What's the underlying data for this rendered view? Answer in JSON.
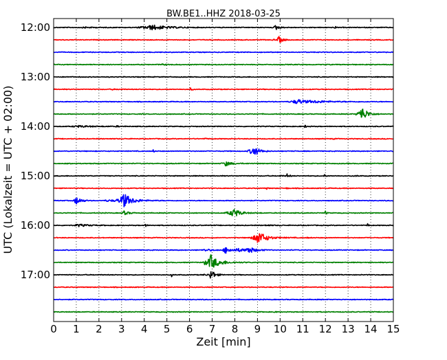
{
  "chart_data": {
    "type": "line",
    "title": "BW.BE1..HHZ 2018-03-25",
    "xlabel": "Zeit  [min]",
    "ylabel": "UTC (Lokalzeit = UTC + 02:00)",
    "xlim": [
      0,
      15
    ],
    "x_ticks": [
      "0",
      "1",
      "2",
      "3",
      "4",
      "5",
      "6",
      "7",
      "8",
      "9",
      "10",
      "11",
      "12",
      "13",
      "14",
      "15"
    ],
    "y_tick_labels": [
      "12:00",
      "13:00",
      "14:00",
      "15:00",
      "16:00",
      "17:00"
    ],
    "grid": "vertical dotted lines at each minute",
    "colors": [
      "#000000",
      "#ff0000",
      "#0000ff",
      "#008000"
    ],
    "traces": [
      {
        "start": "12:00",
        "events": [
          [
            4.1,
            1.6,
            0.8
          ],
          [
            4.4,
            2.0,
            0.5
          ],
          [
            9.8,
            3.2,
            0.15
          ],
          [
            12.4,
            2.2,
            0.05
          ],
          [
            1.4,
            0.7,
            0.3
          ]
        ]
      },
      {
        "start": "12:15",
        "events": [
          [
            9.95,
            4.5,
            0.15
          ],
          [
            9.7,
            0.8,
            0.1
          ]
        ]
      },
      {
        "start": "12:30",
        "events": []
      },
      {
        "start": "12:45",
        "events": [
          [
            4.8,
            0.5,
            0.3
          ]
        ]
      },
      {
        "start": "13:00",
        "events": []
      },
      {
        "start": "13:15",
        "events": [
          [
            6.05,
            2.5,
            0.05
          ],
          [
            2.6,
            0.6,
            0.1
          ],
          [
            2.9,
            0.5,
            0.1
          ]
        ]
      },
      {
        "start": "13:30",
        "events": [
          [
            10.8,
            2.2,
            0.35
          ],
          [
            10.6,
            1.2,
            0.5
          ],
          [
            11.6,
            1.0,
            0.8
          ]
        ]
      },
      {
        "start": "13:45",
        "events": [
          [
            13.6,
            7.5,
            0.2
          ],
          [
            13.5,
            3.0,
            0.35
          ],
          [
            0.15,
            0.5,
            0.05
          ],
          [
            3.9,
            0.5,
            0.05
          ]
        ]
      },
      {
        "start": "14:00",
        "events": [
          [
            1.1,
            1.0,
            0.6
          ],
          [
            2.8,
            0.5,
            0.2
          ],
          [
            11.1,
            1.5,
            0.1
          ]
        ]
      },
      {
        "start": "14:15",
        "events": [
          [
            6.7,
            0.6,
            0.1
          ],
          [
            12.3,
            0.6,
            0.1
          ]
        ]
      },
      {
        "start": "14:30",
        "events": [
          [
            8.85,
            5.0,
            0.2
          ],
          [
            8.7,
            2.5,
            0.3
          ],
          [
            4.4,
            2.0,
            0.05
          ]
        ]
      },
      {
        "start": "14:45",
        "events": [
          [
            0.7,
            2.0,
            0.05
          ],
          [
            7.6,
            2.5,
            0.15
          ],
          [
            7.6,
            0.8,
            0.5
          ],
          [
            1.6,
            0.5,
            0.1
          ]
        ]
      },
      {
        "start": "15:00",
        "events": [
          [
            10.3,
            2.5,
            0.1
          ],
          [
            11.95,
            2.0,
            0.05
          ],
          [
            10.0,
            0.7,
            0.1
          ],
          [
            13.3,
            0.8,
            0.1
          ]
        ]
      },
      {
        "start": "15:15",
        "events": [
          [
            9.4,
            1.2,
            0.05
          ],
          [
            10.3,
            0.6,
            0.1
          ]
        ]
      },
      {
        "start": "15:30",
        "events": [
          [
            3.1,
            7.0,
            0.25
          ],
          [
            3.0,
            3.0,
            0.6
          ],
          [
            1.0,
            5.0,
            0.2
          ],
          [
            2.4,
            1.0,
            0.3
          ]
        ]
      },
      {
        "start": "15:45",
        "events": [
          [
            7.95,
            4.5,
            0.2
          ],
          [
            7.8,
            2.0,
            0.5
          ],
          [
            3.1,
            2.5,
            0.2
          ],
          [
            12.0,
            2.5,
            0.05
          ]
        ]
      },
      {
        "start": "16:00",
        "events": [
          [
            1.1,
            1.5,
            0.4
          ],
          [
            4.05,
            2.0,
            0.05
          ],
          [
            13.85,
            3.0,
            0.05
          ],
          [
            9.4,
            0.6,
            0.2
          ],
          [
            10.0,
            0.6,
            0.05
          ]
        ]
      },
      {
        "start": "16:15",
        "events": [
          [
            9.05,
            6.5,
            0.25
          ],
          [
            8.9,
            2.5,
            0.6
          ],
          [
            11.2,
            0.5,
            0.1
          ]
        ]
      },
      {
        "start": "16:30",
        "events": [
          [
            7.6,
            4.0,
            0.25
          ],
          [
            8.6,
            3.8,
            0.25
          ],
          [
            6.7,
            1.2,
            0.3
          ],
          [
            8.2,
            1.5,
            0.5
          ]
        ]
      },
      {
        "start": "16:45",
        "events": [
          [
            6.95,
            9.0,
            0.25
          ],
          [
            6.7,
            3.0,
            0.3
          ],
          [
            7.5,
            1.0,
            0.6
          ]
        ]
      },
      {
        "start": "17:00",
        "events": [
          [
            6.95,
            7.0,
            0.15
          ],
          [
            5.2,
            2.5,
            0.05
          ],
          [
            6.7,
            0.7,
            0.3
          ]
        ]
      },
      {
        "start": "17:15",
        "events": []
      },
      {
        "start": "17:30",
        "events": []
      },
      {
        "start": "17:45",
        "events": [
          [
            9.7,
            0.5,
            0.1
          ]
        ]
      }
    ]
  }
}
